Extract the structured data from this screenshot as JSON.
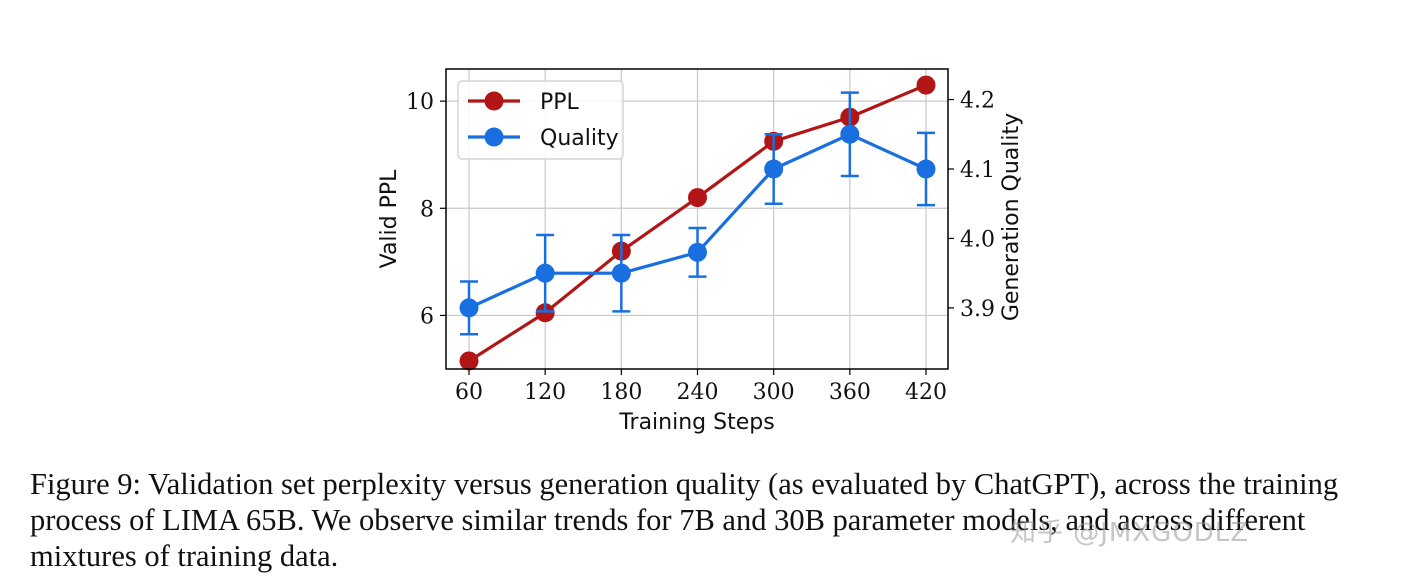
{
  "chart_data": {
    "type": "line",
    "xlabel": "Training Steps",
    "ylabel": "Valid PPL",
    "y2label": "Generation Quality",
    "categories": [
      60,
      120,
      180,
      240,
      300,
      360,
      420
    ],
    "ylim": [
      5.0,
      10.6
    ],
    "y2lim": [
      3.812,
      4.244
    ],
    "yticks": [
      6,
      8,
      10
    ],
    "y2ticks": [
      "3.9",
      "4.0",
      "4.1",
      "4.2"
    ],
    "grid": true,
    "legend_position": "top-left",
    "series": [
      {
        "name": "PPL",
        "axis": "left",
        "color": "#b21515",
        "values": [
          5.15,
          6.05,
          7.2,
          8.2,
          9.25,
          9.7,
          10.3
        ]
      },
      {
        "name": "Quality",
        "axis": "right",
        "color": "#1a6fe0",
        "values": [
          3.9,
          3.95,
          3.95,
          3.98,
          4.1,
          4.15,
          4.1
        ],
        "error": [
          0.038,
          0.055,
          0.055,
          0.035,
          0.05,
          0.06,
          0.052
        ]
      }
    ]
  },
  "caption": "Figure 9: Validation set perplexity versus generation quality (as evaluated by ChatGPT), across the training process of LIMA 65B. We observe similar trends for 7B and 30B parameter models, and across different mixtures of training data.",
  "watermark": "知乎 @JMXGODLZ"
}
